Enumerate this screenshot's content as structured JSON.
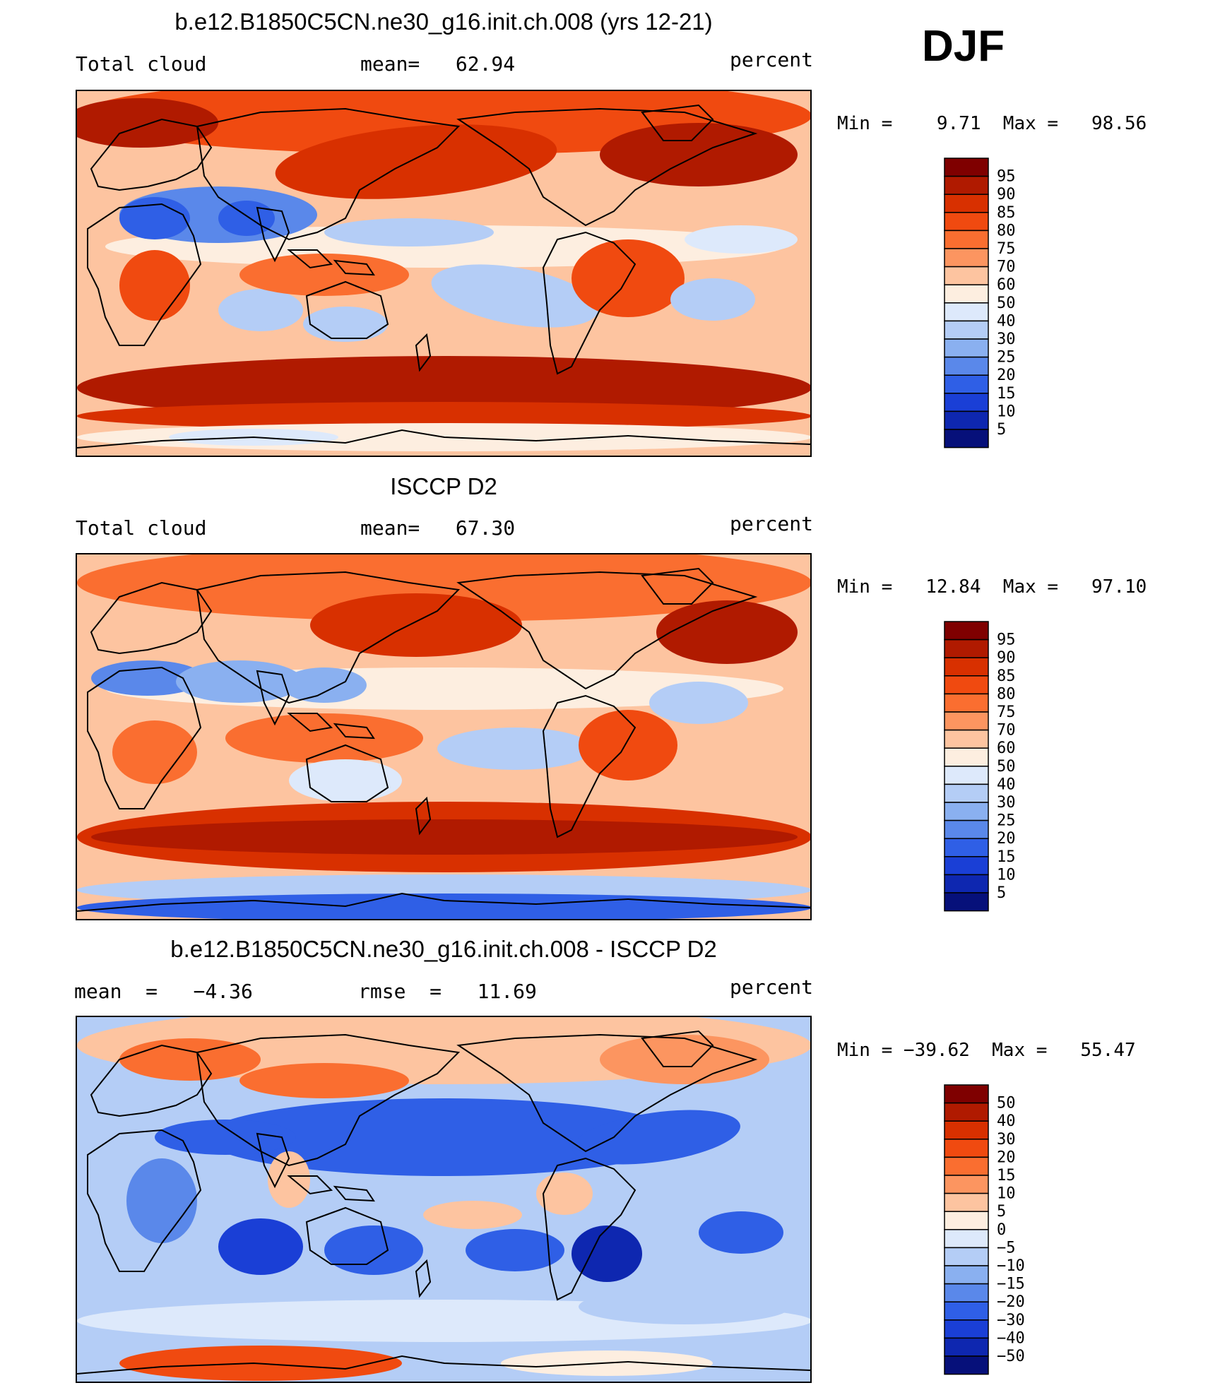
{
  "season": "DJF",
  "panels": [
    {
      "title": "b.e12.B1850C5CN.ne30_g16.init.ch.008 (yrs 12-21)",
      "left_label": "Total cloud",
      "center_label": "mean=   62.94",
      "right_label": "percent",
      "minmax": "Min =    9.71  Max =   98.56",
      "colorbar_labels": [
        "95",
        "90",
        "85",
        "80",
        "75",
        "70",
        "60",
        "50",
        "40",
        "30",
        "25",
        "20",
        "15",
        "10",
        "5"
      ]
    },
    {
      "title": "ISCCP D2",
      "left_label": "Total cloud",
      "center_label": "mean=   67.30",
      "right_label": "percent",
      "minmax": "Min =   12.84  Max =   97.10",
      "colorbar_labels": [
        "95",
        "90",
        "85",
        "80",
        "75",
        "70",
        "60",
        "50",
        "40",
        "30",
        "25",
        "20",
        "15",
        "10",
        "5"
      ]
    },
    {
      "title": "b.e12.B1850C5CN.ne30_g16.init.ch.008 - ISCCP D2",
      "left_label": "mean  =   −4.36",
      "center_label": "rmse  =   11.69",
      "right_label": "percent",
      "minmax": "Min = −39.62  Max =   55.47",
      "colorbar_labels": [
        "50",
        "40",
        "30",
        "20",
        "15",
        "10",
        "5",
        "0",
        "−5",
        "−10",
        "−15",
        "−20",
        "−30",
        "−40",
        "−50"
      ]
    }
  ],
  "colors": [
    "#7f0000",
    "#b01a00",
    "#d83000",
    "#f04a10",
    "#fa6e30",
    "#fc9560",
    "#fdc4a0",
    "#fdeee0",
    "#dde9fb",
    "#b4cdf6",
    "#8ab0f0",
    "#5a88ea",
    "#2f5fe6",
    "#1a3fd6",
    "#0e27b0",
    "#06107a"
  ]
}
